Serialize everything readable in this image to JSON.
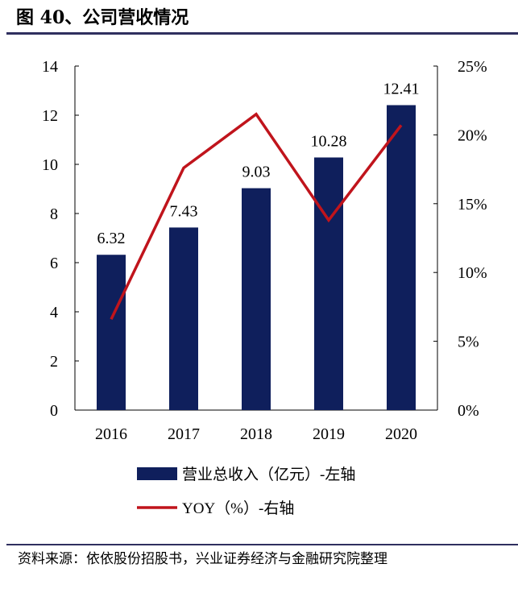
{
  "title": "图 40、公司营收情况",
  "source": "资料来源：依依股份招股书，兴业证券经济与金融研究院整理",
  "chart_data": {
    "type": "bar",
    "categories": [
      "2016",
      "2017",
      "2018",
      "2019",
      "2020"
    ],
    "series": [
      {
        "name": "营业总收入（亿元）-左轴",
        "type": "bar",
        "axis": "left",
        "values": [
          6.32,
          7.43,
          9.03,
          10.28,
          12.41
        ],
        "color": "#0f1f5c"
      },
      {
        "name": "YOY（%）-右轴",
        "type": "line",
        "axis": "right",
        "values": [
          6.6,
          17.6,
          21.5,
          13.8,
          20.7
        ],
        "color": "#c0141c"
      }
    ],
    "data_labels": [
      "6.32",
      "7.43",
      "9.03",
      "10.28",
      "12.41"
    ],
    "ylim_left": [
      0,
      14
    ],
    "yticks_left": [
      "0",
      "2",
      "4",
      "6",
      "8",
      "10",
      "12",
      "14"
    ],
    "ylim_right": [
      0,
      25
    ],
    "yticks_right": [
      "0%",
      "5%",
      "10%",
      "15%",
      "20%",
      "25%"
    ],
    "grid": false,
    "legend_position": "bottom"
  }
}
